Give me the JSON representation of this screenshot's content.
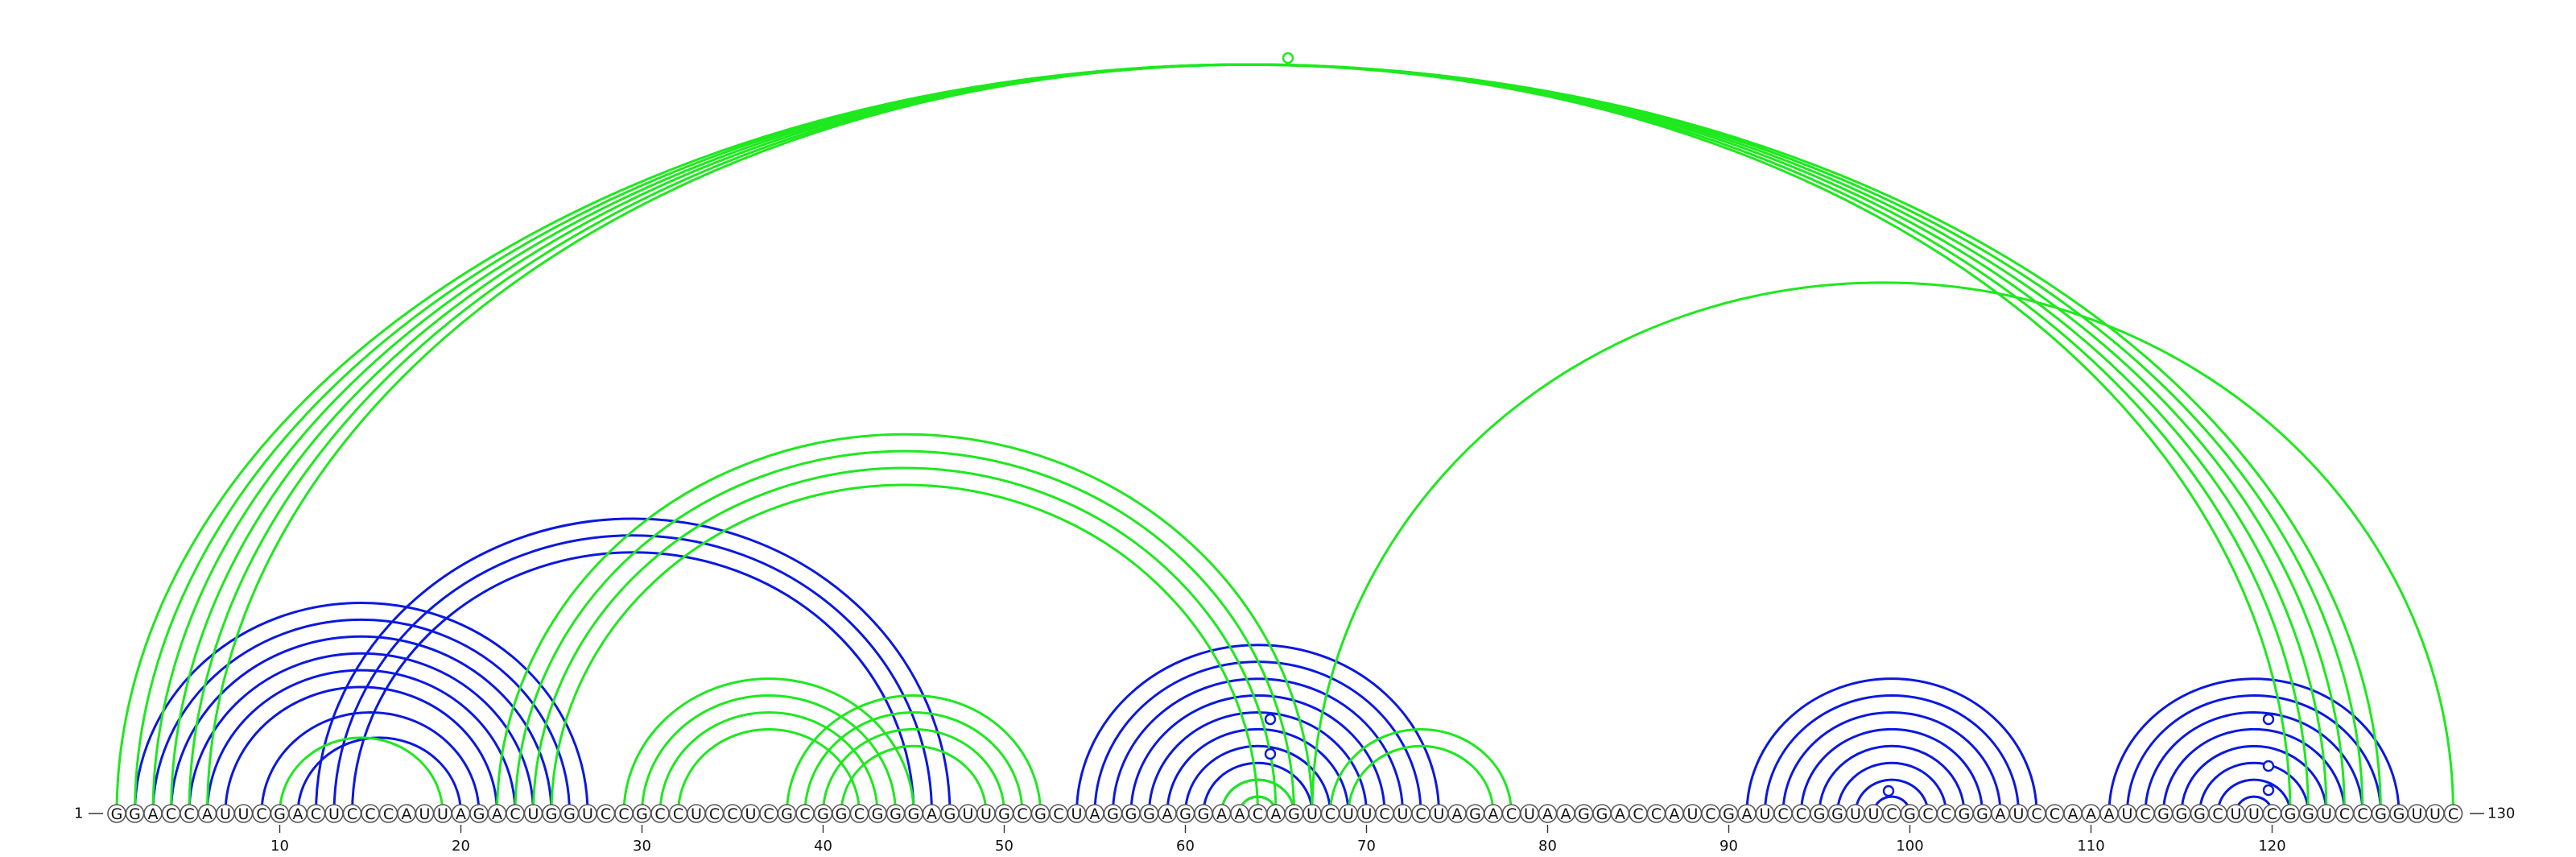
{
  "sequence": "GGACCAUUCGACUCCCAUUAGACUGGUCCGCCUCCUCGCGGCGGGAGUUGCGCUAGGGAGGAACAGUCUUCUCUAGACUAAGGACCAUCGAUCCGGUUCGCCGGAUCCAAAUCGGGCUUCGGUCCGGUUC",
  "start_label": "1",
  "end_label": "130",
  "colors": {
    "blue": "#0a18e0",
    "green": "#1ee81e"
  },
  "chart_data": {
    "type": "arc-diagram",
    "length": 130,
    "tick_labels": [
      "10",
      "20",
      "30",
      "40",
      "50",
      "60",
      "70",
      "80",
      "90",
      "100",
      "110",
      "120"
    ],
    "ticks": [
      10,
      20,
      30,
      40,
      50,
      60,
      70,
      80,
      90,
      100,
      110,
      120
    ],
    "pairs_blue": [
      [
        2,
        27
      ],
      [
        3,
        26
      ],
      [
        4,
        25
      ],
      [
        5,
        24
      ],
      [
        6,
        23
      ],
      [
        7,
        22
      ],
      [
        9,
        21
      ],
      [
        11,
        20
      ],
      [
        12,
        47
      ],
      [
        13,
        46
      ],
      [
        14,
        45
      ],
      [
        54,
        74
      ],
      [
        55,
        73
      ],
      [
        56,
        72
      ],
      [
        57,
        71
      ],
      [
        58,
        70
      ],
      [
        59,
        69
      ],
      [
        60,
        68
      ],
      [
        61,
        67
      ],
      [
        62,
        66
      ],
      [
        63,
        65
      ],
      [
        91,
        107
      ],
      [
        92,
        106
      ],
      [
        93,
        105
      ],
      [
        94,
        104
      ],
      [
        95,
        103
      ],
      [
        96,
        102
      ],
      [
        97,
        101
      ],
      [
        98,
        100
      ],
      [
        111,
        127
      ],
      [
        112,
        126
      ],
      [
        113,
        125
      ],
      [
        114,
        124
      ],
      [
        115,
        123
      ],
      [
        116,
        122
      ],
      [
        117,
        121
      ],
      [
        118,
        120
      ]
    ],
    "pairs_green": [
      [
        1,
        126
      ],
      [
        2,
        125
      ],
      [
        3,
        124
      ],
      [
        4,
        123
      ],
      [
        5,
        122
      ],
      [
        6,
        121
      ],
      [
        67,
        130
      ],
      [
        10,
        19
      ],
      [
        22,
        67
      ],
      [
        23,
        66
      ],
      [
        24,
        65
      ],
      [
        25,
        64
      ],
      [
        29,
        45
      ],
      [
        30,
        44
      ],
      [
        31,
        43
      ],
      [
        32,
        42
      ],
      [
        38,
        52
      ],
      [
        39,
        51
      ],
      [
        40,
        50
      ],
      [
        41,
        49
      ],
      [
        62,
        66
      ],
      [
        63,
        65
      ],
      [
        68,
        78
      ],
      [
        69,
        77
      ]
    ],
    "markers": [
      {
        "pos": 65.5,
        "top": true,
        "color": "green"
      },
      {
        "pos": 64,
        "top": true,
        "color": "blue"
      },
      {
        "pos": 64,
        "top": true,
        "color": "blue2"
      },
      {
        "pos": 99,
        "top": true,
        "color": "blue"
      },
      {
        "pos": 119,
        "top": true,
        "color": "blue"
      },
      {
        "pos": 119,
        "top": true,
        "color": "blue2"
      },
      {
        "pos": 119,
        "top": true,
        "color": "blue3"
      }
    ]
  }
}
